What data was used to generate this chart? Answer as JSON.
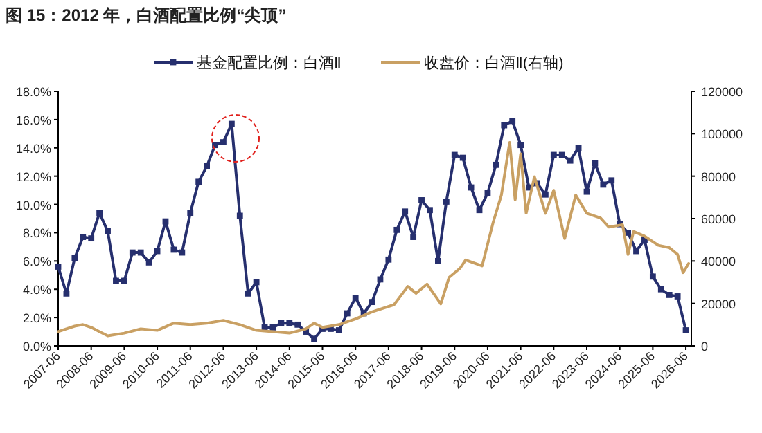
{
  "chart_data": {
    "type": "line",
    "title": "图 15：2012 年，白酒配置比例“尖顶”",
    "xlim": [
      "2007-06",
      "2026-08"
    ],
    "xticks": [
      {
        "value": "2007-06",
        "label": "2007-06"
      },
      {
        "value": "2008-06",
        "label": "2008-06"
      },
      {
        "value": "2009-06",
        "label": "2009-06"
      },
      {
        "value": "2010-06",
        "label": "2010-06"
      },
      {
        "value": "2011-06",
        "label": "2011-06"
      },
      {
        "value": "2012-06",
        "label": "2012-06"
      },
      {
        "value": "2013-06",
        "label": "2013-06"
      },
      {
        "value": "2014-06",
        "label": "2014-06"
      },
      {
        "value": "2015-06",
        "label": "2015-06"
      },
      {
        "value": "2016-06",
        "label": "2016-06"
      },
      {
        "value": "2017-06",
        "label": "2017-06"
      },
      {
        "value": "2018-06",
        "label": "2018-06"
      },
      {
        "value": "2019-06",
        "label": "2019-06"
      },
      {
        "value": "2020-06",
        "label": "2020-06"
      },
      {
        "value": "2021-06",
        "label": "2021-06"
      },
      {
        "value": "2022-06",
        "label": "2022-06"
      },
      {
        "value": "2023-06",
        "label": "2023-06"
      },
      {
        "value": "2024-06",
        "label": "2024-06"
      },
      {
        "value": "2025-06",
        "label": "2025-06"
      },
      {
        "value": "2026-06",
        "label": "2026-06"
      }
    ],
    "ylim": [
      0,
      18
    ],
    "yticks": [
      {
        "value": 0,
        "label": "0.0%"
      },
      {
        "value": 2,
        "label": "2.0%"
      },
      {
        "value": 4,
        "label": "4.0%"
      },
      {
        "value": 6,
        "label": "6.0%"
      },
      {
        "value": 8,
        "label": "8.0%"
      },
      {
        "value": 10,
        "label": "10.0%"
      },
      {
        "value": 12,
        "label": "12.0%"
      },
      {
        "value": 14,
        "label": "14.0%"
      },
      {
        "value": 16,
        "label": "16.0%"
      },
      {
        "value": 18,
        "label": "18.0%"
      }
    ],
    "y2lim": [
      0,
      120000
    ],
    "y2ticks": [
      0,
      20000,
      40000,
      60000,
      80000,
      100000,
      120000
    ],
    "legend": "top",
    "series": [
      {
        "name": "基金配置比例：白酒Ⅱ",
        "color": "#262f6e",
        "marker": "square",
        "x": [
          "2007-06",
          "2007-09",
          "2007-12",
          "2008-03",
          "2008-06",
          "2008-09",
          "2008-12",
          "2009-03",
          "2009-06",
          "2009-09",
          "2009-12",
          "2010-03",
          "2010-06",
          "2010-09",
          "2010-12",
          "2011-03",
          "2011-06",
          "2011-09",
          "2011-12",
          "2012-03",
          "2012-06",
          "2012-09",
          "2012-12",
          "2013-03",
          "2013-06",
          "2013-09",
          "2013-12",
          "2014-03",
          "2014-06",
          "2014-09",
          "2014-12",
          "2015-03",
          "2015-06",
          "2015-09",
          "2015-12",
          "2016-03",
          "2016-06",
          "2016-09",
          "2016-12",
          "2017-03",
          "2017-06",
          "2017-09",
          "2017-12",
          "2018-03",
          "2018-06",
          "2018-09",
          "2018-12",
          "2019-03",
          "2019-06",
          "2019-09",
          "2019-12",
          "2020-03",
          "2020-06",
          "2020-09",
          "2020-12",
          "2021-03",
          "2021-06",
          "2021-09",
          "2021-12",
          "2022-03",
          "2022-06",
          "2022-09",
          "2022-12",
          "2023-03",
          "2023-06",
          "2023-09",
          "2023-12",
          "2024-03",
          "2024-06",
          "2024-09",
          "2024-12",
          "2025-03",
          "2025-06",
          "2025-09",
          "2025-12",
          "2026-03",
          "2026-06"
        ],
        "values": [
          5.6,
          3.7,
          6.2,
          7.7,
          7.6,
          9.4,
          8.1,
          4.6,
          4.6,
          6.6,
          6.6,
          5.9,
          6.7,
          8.8,
          6.8,
          6.6,
          9.4,
          11.6,
          12.7,
          14.2,
          14.4,
          15.7,
          9.2,
          3.7,
          4.5,
          1.3,
          1.3,
          1.6,
          1.6,
          1.5,
          1.0,
          0.5,
          1.2,
          1.2,
          1.1,
          2.3,
          3.4,
          2.3,
          3.1,
          4.7,
          6.1,
          8.2,
          9.5,
          7.7,
          10.3,
          9.6,
          6.0,
          10.2,
          13.5,
          13.3,
          11.2,
          9.6,
          10.8,
          12.8,
          15.6,
          15.9,
          14.2,
          11.2,
          11.5,
          10.7,
          13.5,
          13.5,
          13.1,
          14.0,
          10.9,
          12.9,
          11.4,
          11.7,
          8.6,
          8.0,
          6.7,
          7.5,
          4.9,
          4.0,
          3.6,
          3.5,
          1.1
        ]
      },
      {
        "name": "收盘价：白酒Ⅱ(右轴)",
        "color": "#c9a063",
        "axis": "y2",
        "marker": "none",
        "x": [
          "2007-06",
          "2007-12",
          "2008-03",
          "2008-06",
          "2008-09",
          "2008-12",
          "2009-06",
          "2009-12",
          "2010-06",
          "2010-12",
          "2011-06",
          "2011-12",
          "2012-06",
          "2012-12",
          "2013-06",
          "2013-12",
          "2014-06",
          "2014-12",
          "2015-03",
          "2015-06",
          "2015-12",
          "2016-06",
          "2016-12",
          "2017-08",
          "2018-01",
          "2018-04",
          "2018-08",
          "2019-01",
          "2019-04",
          "2019-08",
          "2019-10",
          "2020-04",
          "2020-08",
          "2020-11",
          "2021-02",
          "2021-04",
          "2021-06",
          "2021-08",
          "2021-11",
          "2022-03",
          "2022-06",
          "2022-10",
          "2023-02",
          "2023-06",
          "2023-11",
          "2024-02",
          "2024-07",
          "2024-09",
          "2024-11",
          "2025-03",
          "2025-08",
          "2025-12",
          "2026-03",
          "2026-05",
          "2026-07"
        ],
        "values": [
          6700,
          9300,
          10000,
          8700,
          6700,
          4700,
          6000,
          8000,
          7300,
          10700,
          10000,
          10700,
          12000,
          10000,
          7300,
          6700,
          6000,
          8000,
          10700,
          8700,
          10000,
          12700,
          16000,
          19400,
          28000,
          24800,
          29100,
          19800,
          32300,
          36600,
          40500,
          37700,
          58200,
          71100,
          95900,
          68900,
          90500,
          62500,
          79700,
          62500,
          73300,
          50600,
          71100,
          62500,
          60300,
          56000,
          57100,
          43100,
          53900,
          51700,
          47400,
          46300,
          43100,
          34500,
          38800
        ]
      }
    ]
  }
}
